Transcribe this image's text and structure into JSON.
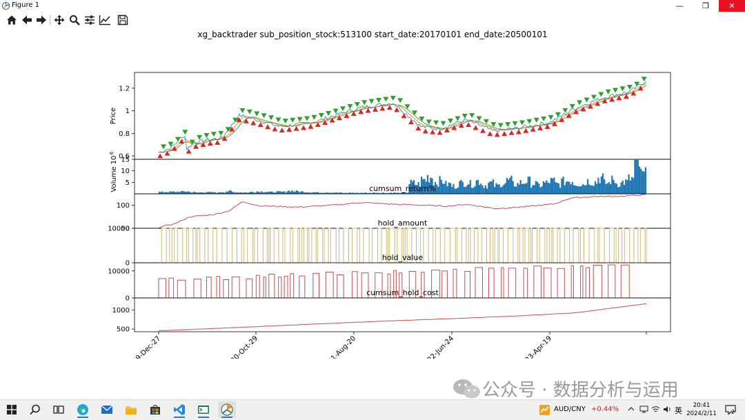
{
  "window": {
    "title": "Figure 1"
  },
  "window_controls": {
    "minimize": "—",
    "maximize": "❐",
    "close": "✕"
  },
  "toolbar": {
    "buttons": [
      "home-icon",
      "back-arrow-icon",
      "forward-arrow-icon",
      "pan-move-icon",
      "zoom-magnifier-icon",
      "subplots-config-icon",
      "edit-axes-icon",
      "save-disk-icon"
    ]
  },
  "figure_title": "xg_backtrader sub_position_stock:513100 start_date:20170101 end_date:20500101",
  "chart_data": [
    {
      "type": "line",
      "ylabel": "Price",
      "yticks": [
        0.6,
        0.8,
        1.0,
        1.2
      ],
      "ylim": [
        0.57,
        1.34
      ],
      "x": [
        "2019-12-27",
        "2020-02-03",
        "2020-03-16",
        "2020-03-23",
        "2020-04-10",
        "2020-05-18",
        "2020-07-10",
        "2020-09-01",
        "2020-11-06",
        "2021-01-04",
        "2021-04-01",
        "2021-05-12",
        "2021-07-26",
        "2021-09-15",
        "2021-12-20",
        "2022-03-15",
        "2022-05-10",
        "2022-08-01",
        "2022-10-24",
        "2023-01-16",
        "2023-04-19",
        "2023-07-01",
        "2023-09-30",
        "2023-12-20",
        "2024-02-08"
      ],
      "series": [
        {
          "values": [
            0.63,
            0.67,
            0.79,
            0.66,
            0.71,
            0.74,
            0.76,
            0.96,
            0.91,
            0.86,
            0.89,
            0.92,
            0.99,
            1.03,
            1.07,
            0.86,
            0.84,
            0.92,
            0.82,
            0.85,
            0.9,
            1.02,
            1.12,
            1.17,
            1.27
          ]
        }
      ],
      "buy_markers": 68,
      "sell_markers": 68
    },
    {
      "type": "bar",
      "ylabel": "Volume",
      "y_multiplier": "10^6",
      "yticks": [
        5,
        10,
        15
      ],
      "ylim": [
        0,
        15
      ],
      "series": [
        {
          "values": [
            0.8,
            0.9,
            0.9,
            1.0,
            1.1,
            0.8,
            0.6,
            0.8,
            0.7,
            0.6,
            0.8,
            1.2,
            0.8,
            0.7,
            0.6,
            0.9,
            1.1,
            1.0,
            0.8,
            0.9,
            0.9,
            1.4,
            1.2,
            1.0,
            0.8,
            0.7,
            0.6,
            0.7,
            0.6,
            0.5,
            0.4,
            0.5,
            0.4,
            0.5,
            0.4,
            0.5,
            0.5,
            0.4,
            0.5,
            0.4,
            0.6,
            5.0,
            4.5,
            6.5,
            8.0,
            5.5,
            6.0,
            4.5,
            3.6,
            5.0,
            5.4,
            4.6,
            6.0,
            4.0,
            5.0,
            3.8,
            5.0,
            6.2,
            4.5,
            5.2,
            6.0,
            4.8,
            4.0,
            5.0,
            6.0,
            4.5,
            5.8,
            6.2,
            5.0,
            4.6,
            6.0,
            5.5,
            7.5,
            5.0,
            6.4,
            4.8,
            5.5,
            7.0,
            14.0,
            9.0
          ]
        }
      ]
    },
    {
      "type": "line",
      "title": "cumsum_return%",
      "yticks": [
        50,
        100
      ],
      "ylim": [
        50,
        125
      ],
      "x": [
        "2019-12-27",
        "2020-02-15",
        "2020-04-01",
        "2020-06-15",
        "2020-08-01",
        "2020-09-10",
        "2020-11-01",
        "2021-03-01",
        "2021-07-01",
        "2021-09-10",
        "2022-01-01",
        "2022-04-01",
        "2022-06-01",
        "2022-08-01",
        "2022-11-01",
        "2023-02-01",
        "2023-05-01",
        "2023-06-20",
        "2023-09-01",
        "2023-12-01",
        "2024-02-08"
      ],
      "series": [
        {
          "values": [
            52,
            60,
            75,
            80,
            88,
            108,
            99,
            96,
            101,
            106,
            102,
            100,
            98,
            102,
            93,
            97,
            103,
            116,
            119,
            120,
            123
          ]
        }
      ]
    },
    {
      "type": "line",
      "title": "hold_amount",
      "yticks": [
        0,
        10000
      ],
      "ylim": [
        0,
        10000
      ],
      "series": [
        {
          "on_value": 10000,
          "off_value": 0,
          "segments": 140
        }
      ]
    },
    {
      "type": "line",
      "title": "hold_value",
      "yticks": [
        0,
        10000
      ],
      "ylim": [
        0,
        13000
      ],
      "series": [
        {
          "segments": 90
        }
      ]
    },
    {
      "type": "line",
      "title": "cumsum_hold_cost",
      "yticks": [
        500,
        1000
      ],
      "ylim": [
        430,
        1310
      ],
      "x": [
        "2019-12-27",
        "2020-07-01",
        "2021-01-01",
        "2021-07-01",
        "2022-01-01",
        "2022-07-01",
        "2023-01-01",
        "2023-07-01",
        "2024-02-08"
      ],
      "series": [
        {
          "values": [
            455,
            520,
            590,
            655,
            720,
            775,
            840,
            920,
            1160
          ]
        }
      ]
    }
  ],
  "x_ticks": [
    "2019-Dec-27",
    "2020-Oct-29",
    "2021-Aug-20",
    "2022-Jun-24",
    "2023-Apr-19"
  ],
  "colors": {
    "price_line": "#1f77b4",
    "ma_1": "#ff7f0e",
    "ma_2": "#2ca02c",
    "buy_marker": "#d62728",
    "sell_marker": "#2ca02c",
    "volume": "#1f77b4",
    "return_line": "#c44e52",
    "hold_amount_line": "#ccb974",
    "hold_value_line": "#c44e52",
    "hold_cost_line": "#c44e52"
  },
  "watermark": "公众号 · 数据分析与运用",
  "taskbar": {
    "apps": [
      "windows-start-icon",
      "search-icon",
      "task-view-icon",
      "edge-browser-icon",
      "mail-icon",
      "file-explorer-icon",
      "store-icon",
      "vscode-icon",
      "terminal-icon",
      "python-figure-icon"
    ],
    "fx_pair": "AUD/CNY",
    "fx_change": "+0.44%",
    "ime": "英",
    "time": "20:41",
    "date": "2024/2/11",
    "notification_count": "2"
  }
}
